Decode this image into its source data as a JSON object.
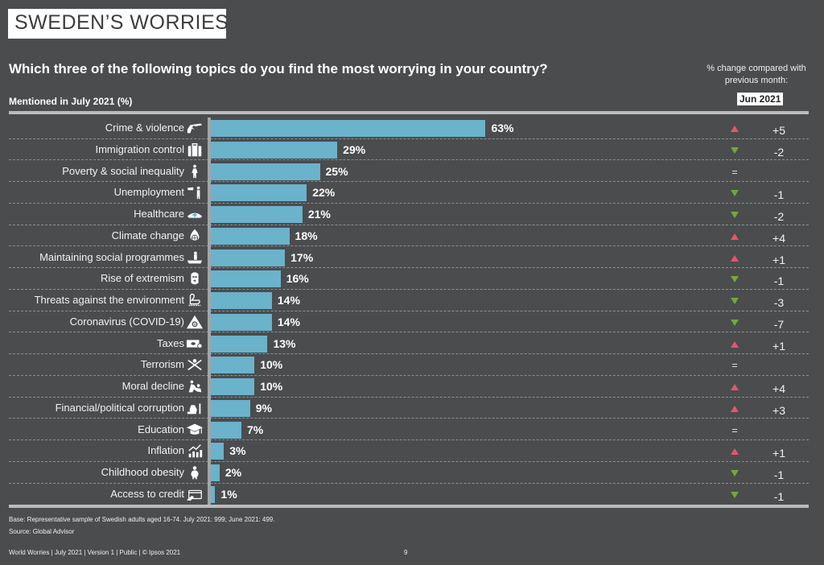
{
  "header": {
    "title": "SWEDEN’S WORRIES",
    "question": "Which three of the following topics do you find the most worrying in your country?",
    "subtitle": "Mentioned in July 2021 (%)",
    "change_note": "% change compared with previous month:",
    "comparison_month": "Jun 2021"
  },
  "colors": {
    "background": "#4a4c4e",
    "bar": "#6bb2cb",
    "up": "#e8556a",
    "down": "#70a83d"
  },
  "chart_data": {
    "type": "bar",
    "orientation": "horizontal",
    "title": "Which three of the following topics do you find the most worrying in your country?",
    "xlabel": "Mentioned in July 2021 (%)",
    "ylabel": "",
    "xlim": [
      0,
      63
    ],
    "grid": false,
    "categories": [
      "Crime & violence",
      "Immigration control",
      "Poverty & social inequality",
      "Unemployment",
      "Healthcare",
      "Climate change",
      "Maintaining social programmes",
      "Rise of extremism",
      "Threats against the environment",
      "Coronavirus (COVID-19)",
      "Taxes",
      "Terrorism",
      "Moral decline",
      "Financial/political corruption",
      "Education",
      "Inflation",
      "Childhood obesity",
      "Access to credit"
    ],
    "values": [
      63,
      29,
      25,
      22,
      21,
      18,
      17,
      16,
      14,
      14,
      13,
      10,
      10,
      9,
      7,
      3,
      2,
      1
    ],
    "value_labels": [
      "63%",
      "29%",
      "25%",
      "22%",
      "21%",
      "18%",
      "17%",
      "16%",
      "14%",
      "14%",
      "13%",
      "10%",
      "10%",
      "9%",
      "7%",
      "3%",
      "2%",
      "1%"
    ],
    "icons": [
      "revolver-icon",
      "suitcase-icon",
      "person-icon",
      "unemployed-person-icon",
      "nurse-cap-icon",
      "burning-globe-icon",
      "hand-holding-person-icon",
      "balaclava-icon",
      "swan-icon",
      "biohazard-icon",
      "banknote-icon",
      "crossed-swords-icon",
      "fighting-people-icon",
      "money-bag-icon",
      "graduation-cap-icon",
      "rising-chart-icon",
      "obese-child-icon",
      "credit-card-icon"
    ],
    "change_vs_previous_month": {
      "label": "Jun 2021",
      "directions": [
        "up",
        "down",
        "eq",
        "down",
        "down",
        "up",
        "up",
        "down",
        "down",
        "down",
        "up",
        "eq",
        "up",
        "up",
        "eq",
        "up",
        "down",
        "down"
      ],
      "values": [
        "+5",
        "-2",
        "",
        "-1",
        "-2",
        "+4",
        "+1",
        "-1",
        "-3",
        "-7",
        "+1",
        "",
        "+4",
        "+3",
        "",
        "+1",
        "-1",
        "-1"
      ]
    }
  },
  "footer": {
    "base_note": "Base: Representative sample of Swedish adults aged 16-74. July 2021: 999; June 2021: 499.",
    "source": "Source: Global Advisor",
    "meta": "World Worries | July 2021 |  Version 1  |  Public | © Ipsos 2021",
    "page_number": "9"
  }
}
